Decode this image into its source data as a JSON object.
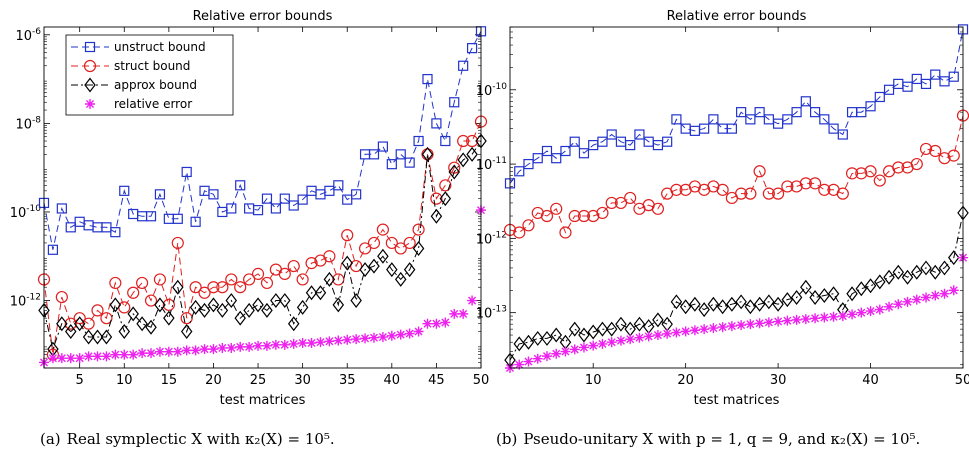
{
  "captions": {
    "a": {
      "label": "(a)",
      "text": "Real symplectic X with κ₂(X) = 10⁵."
    },
    "b": {
      "label": "(b)",
      "text": "Pseudo-unitary X with p = 1, q = 9, and κ₂(X) = 10⁵."
    }
  },
  "colors": {
    "unstruct": "#2233cc",
    "struct": "#e02020",
    "approx": "#000000",
    "relerr": "#ee22ee"
  },
  "chart_data": [
    {
      "type": "line",
      "title": "Relative error bounds",
      "xlabel": "test matrices",
      "ylabel": "",
      "yscale": "log",
      "xlim": [
        1,
        50
      ],
      "ylim": [
        3e-14,
        1.5e-06
      ],
      "xticks": [
        5,
        10,
        15,
        20,
        25,
        30,
        35,
        40,
        45,
        50
      ],
      "yticks": [
        -12,
        -10,
        -8,
        -6
      ],
      "ytick_labels": [
        "10^-12",
        "10^-10",
        "10^-8",
        "10^-6"
      ],
      "grid": false,
      "legend": "top-left",
      "series": [
        {
          "name": "unstruct bound",
          "style": "unstruct",
          "values": [
            1.6e-10,
            1.4e-11,
            1.2e-10,
            4.5e-11,
            6e-11,
            5e-11,
            4.5e-11,
            4.5e-11,
            3.5e-11,
            3e-10,
            9e-11,
            8e-11,
            8e-11,
            2.5e-10,
            7e-11,
            7e-11,
            8e-10,
            6e-11,
            3e-10,
            2.5e-10,
            1e-10,
            1.2e-10,
            4e-10,
            1.2e-10,
            1.1e-10,
            2e-10,
            1.2e-10,
            2e-10,
            1.4e-10,
            1.9e-10,
            3e-10,
            2.5e-10,
            3e-10,
            4e-10,
            1.9e-10,
            2.5e-10,
            2e-09,
            2e-09,
            3e-09,
            1.2e-09,
            2e-09,
            1.3e-09,
            4e-09,
            1e-07,
            1e-08,
            4e-09,
            3e-08,
            2e-07,
            5e-07,
            1.2e-06
          ]
        },
        {
          "name": "struct bound",
          "style": "struct",
          "values": [
            3e-12,
            6e-14,
            1.2e-12,
            3e-13,
            4e-13,
            3e-13,
            6e-13,
            4e-13,
            2.5e-12,
            7e-13,
            1.5e-12,
            2.5e-12,
            1e-12,
            3e-12,
            8e-13,
            2e-11,
            4e-13,
            2e-12,
            1.5e-12,
            2e-12,
            2e-12,
            3e-12,
            2e-12,
            3e-12,
            4e-12,
            2.5e-12,
            5e-12,
            4e-12,
            6e-12,
            3e-12,
            7e-12,
            8e-12,
            1e-11,
            3e-12,
            3e-11,
            6e-12,
            1.5e-11,
            2e-11,
            4e-11,
            2e-11,
            1.5e-11,
            2e-11,
            4e-11,
            2e-09,
            2e-10,
            4e-10,
            1e-09,
            4e-09,
            4e-09,
            1.1e-08
          ]
        },
        {
          "name": "approx bound",
          "style": "approx",
          "values": [
            6e-13,
            8e-14,
            3e-13,
            2e-13,
            3e-13,
            1.5e-13,
            1.5e-13,
            1.5e-13,
            8e-13,
            2e-13,
            5e-13,
            3e-13,
            2.5e-13,
            8e-13,
            4e-13,
            2e-12,
            2e-13,
            7e-13,
            6e-13,
            8e-13,
            6e-13,
            1e-12,
            4e-13,
            6e-13,
            8e-13,
            6e-13,
            1e-12,
            1e-12,
            3e-13,
            7e-13,
            1.5e-12,
            1.5e-12,
            3e-12,
            8e-13,
            7e-12,
            1e-12,
            5e-12,
            6e-12,
            1e-11,
            5e-12,
            3e-12,
            5e-12,
            1.5e-11,
            2e-09,
            8e-11,
            2e-10,
            8e-10,
            1.5e-09,
            2e-09,
            4e-09
          ]
        },
        {
          "name": "relative error",
          "style": "relerr",
          "values": [
            4e-14,
            5e-14,
            5e-14,
            5e-14,
            5e-14,
            5.5e-14,
            5.5e-14,
            5.5e-14,
            6e-14,
            6e-14,
            6e-14,
            6.5e-14,
            6.5e-14,
            7e-14,
            7e-14,
            7e-14,
            7.5e-14,
            7.5e-14,
            8e-14,
            8e-14,
            8.5e-14,
            8.5e-14,
            9e-14,
            9e-14,
            9.5e-14,
            9.5e-14,
            1e-13,
            1e-13,
            1.05e-13,
            1.1e-13,
            1.1e-13,
            1.15e-13,
            1.2e-13,
            1.25e-13,
            1.3e-13,
            1.35e-13,
            1.4e-13,
            1.45e-13,
            1.5e-13,
            1.6e-13,
            1.7e-13,
            1.8e-13,
            2e-13,
            3e-13,
            3e-13,
            3.2e-13,
            5e-13,
            5e-13,
            1e-12,
            1.1e-10
          ]
        }
      ]
    },
    {
      "type": "line",
      "title": "Relative error bounds",
      "xlabel": "test matrices",
      "ylabel": "",
      "yscale": "log",
      "xlim": [
        1,
        50
      ],
      "ylim": [
        1.8e-14,
        7e-10
      ],
      "xticks": [
        10,
        20,
        30,
        40,
        50
      ],
      "yticks": [
        -13,
        -12,
        -11,
        -10
      ],
      "ytick_labels": [
        "10^-13",
        "10^-12",
        "10^-11",
        "10^-10"
      ],
      "grid": false,
      "legend": "none",
      "series": [
        {
          "name": "unstruct bound",
          "style": "unstruct",
          "values": [
            5.5e-12,
            8e-12,
            1e-11,
            1.2e-11,
            1.5e-11,
            1.2e-11,
            1.5e-11,
            2e-11,
            1.4e-11,
            1.8e-11,
            2e-11,
            2.5e-11,
            2e-11,
            1.8e-11,
            2.5e-11,
            2e-11,
            1.8e-11,
            2e-11,
            4e-11,
            3e-11,
            2.8e-11,
            3e-11,
            4e-11,
            3e-11,
            3e-11,
            5e-11,
            4e-11,
            5e-11,
            4e-11,
            3.5e-11,
            4e-11,
            5e-11,
            7e-11,
            5e-11,
            4e-11,
            3e-11,
            2.5e-11,
            5e-11,
            5e-11,
            6e-11,
            8e-11,
            1e-10,
            1.2e-10,
            1.1e-10,
            1.4e-10,
            1.2e-10,
            1.6e-10,
            1.3e-10,
            1.5e-10,
            6.5e-10
          ]
        },
        {
          "name": "struct bound",
          "style": "struct",
          "values": [
            1.3e-12,
            1.2e-12,
            1.5e-12,
            2.2e-12,
            2e-12,
            2.5e-12,
            1.2e-12,
            2e-12,
            2e-12,
            2e-12,
            2.2e-12,
            3e-12,
            3e-12,
            3.5e-12,
            2.5e-12,
            2.8e-12,
            2.5e-12,
            4e-12,
            4.5e-12,
            4.5e-12,
            5e-12,
            4.5e-12,
            5e-12,
            4.5e-12,
            3.5e-12,
            4e-12,
            4e-12,
            8e-12,
            4e-12,
            4e-12,
            5e-12,
            5e-12,
            5.5e-12,
            5.5e-12,
            4.5e-12,
            4.5e-12,
            4e-12,
            7.5e-12,
            7.5e-12,
            8e-12,
            6e-12,
            8e-12,
            9e-12,
            9e-12,
            1e-11,
            1.6e-11,
            1.5e-11,
            1.2e-11,
            1.3e-11,
            4.5e-11
          ]
        },
        {
          "name": "approx bound",
          "style": "approx",
          "values": [
            2.3e-14,
            3.8e-14,
            4e-14,
            4.5e-14,
            4.5e-14,
            5e-14,
            4e-14,
            6e-14,
            5e-14,
            5.5e-14,
            6e-14,
            6e-14,
            7e-14,
            6e-14,
            7e-14,
            6.5e-14,
            8e-14,
            7e-14,
            1.4e-13,
            1.2e-13,
            1.3e-13,
            1.1e-13,
            1.3e-13,
            1.2e-13,
            1.3e-13,
            1.4e-13,
            1.2e-13,
            1.3e-13,
            1.4e-13,
            1.3e-13,
            1.5e-13,
            1.6e-13,
            2.2e-13,
            1.6e-13,
            1.7e-13,
            1.8e-13,
            1.1e-13,
            1.8e-13,
            2.1e-13,
            2.3e-13,
            2.6e-13,
            3e-13,
            3.5e-13,
            3e-13,
            3.5e-13,
            4e-13,
            3.5e-13,
            4e-13,
            5.5e-13,
            2.2e-12
          ]
        },
        {
          "name": "relative error",
          "style": "relerr",
          "values": [
            1.8e-14,
            2e-14,
            2.2e-14,
            2.4e-14,
            2.6e-14,
            2.8e-14,
            3e-14,
            3.2e-14,
            3.4e-14,
            3.6e-14,
            3.8e-14,
            4e-14,
            4.2e-14,
            4.4e-14,
            4.6e-14,
            4.8e-14,
            5e-14,
            5.2e-14,
            5.4e-14,
            5.6e-14,
            5.8e-14,
            6e-14,
            6.2e-14,
            6.4e-14,
            6.6e-14,
            6.8e-14,
            7e-14,
            7.2e-14,
            7.4e-14,
            7.6e-14,
            7.8e-14,
            8e-14,
            8.2e-14,
            8.4e-14,
            8.6e-14,
            8.8e-14,
            9e-14,
            9.5e-14,
            1e-13,
            1.05e-13,
            1.1e-13,
            1.2e-13,
            1.3e-13,
            1.4e-13,
            1.5e-13,
            1.6e-13,
            1.7e-13,
            1.8e-13,
            2e-13,
            5.5e-13
          ]
        }
      ]
    }
  ]
}
